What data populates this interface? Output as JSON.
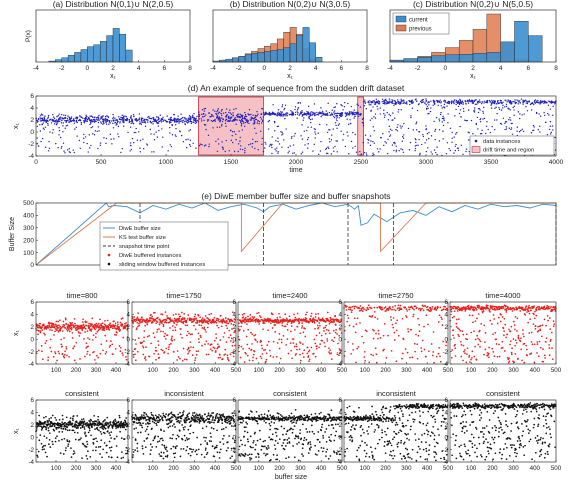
{
  "chart_data": [
    {
      "id": "hist_a",
      "type": "bar",
      "title": "(a) Distribution N(0,1)∪ N(2,0.5)",
      "xlabel": "x₁",
      "ylabel": "P(x)",
      "xlim": [
        -4,
        8
      ],
      "xticks": [
        "-4",
        "-2",
        "0",
        "2",
        "4",
        "6",
        "8"
      ],
      "bin_edges": [
        -3.0,
        -2.5,
        -2.0,
        -1.5,
        -1.0,
        -0.5,
        0.0,
        0.5,
        1.0,
        1.5,
        2.0,
        2.5,
        3.0,
        3.5
      ],
      "series": [
        {
          "name": "current",
          "color": "#3a8fd0",
          "values": [
            0.02,
            0.05,
            0.09,
            0.14,
            0.2,
            0.26,
            0.32,
            0.36,
            0.43,
            0.55,
            0.7,
            0.58,
            0.25
          ]
        }
      ]
    },
    {
      "id": "hist_b",
      "type": "bar",
      "title": "(b) Distribution N(0,2)∪ N(3,0.5)",
      "xlabel": "x₁",
      "xlim": [
        -4,
        8
      ],
      "xticks": [
        "-4",
        "-2",
        "0",
        "2",
        "4",
        "6",
        "8"
      ],
      "bin_edges": [
        -4.0,
        -3.5,
        -3.0,
        -2.5,
        -2.0,
        -1.5,
        -1.0,
        -0.5,
        0.0,
        0.5,
        1.0,
        1.5,
        2.0,
        2.5,
        3.0,
        3.5,
        4.0,
        4.5
      ],
      "series": [
        {
          "name": "current",
          "color": "#3a8fd0",
          "values": [
            0.02,
            0.04,
            0.06,
            0.09,
            0.12,
            0.15,
            0.18,
            0.2,
            0.22,
            0.24,
            0.26,
            0.3,
            0.38,
            0.55,
            0.72,
            0.4,
            0.1
          ]
        },
        {
          "name": "previous",
          "color": "#e07b4f",
          "values": [
            0.0,
            0.02,
            0.04,
            0.08,
            0.12,
            0.17,
            0.22,
            0.28,
            0.33,
            0.38,
            0.48,
            0.62,
            0.72,
            0.58,
            0.28,
            0.05,
            0.0
          ]
        }
      ]
    },
    {
      "id": "hist_c",
      "type": "bar",
      "title": "(c) Distribution N(0,2)∪ N(5,0.5)",
      "xlabel": "x₁",
      "xlim": [
        -4,
        8
      ],
      "xticks": [
        "-4",
        "-2",
        "0",
        "2",
        "4",
        "6",
        "8"
      ],
      "legend": {
        "entries": [
          "current",
          "previous"
        ],
        "position": "top-left"
      },
      "bin_edges": [
        -4.0,
        -3.0,
        -2.0,
        -1.0,
        0.0,
        1.0,
        2.0,
        3.0,
        4.0,
        5.0,
        6.0,
        7.0
      ],
      "series": [
        {
          "name": "current",
          "color": "#3a8fd0",
          "values": [
            0.04,
            0.07,
            0.1,
            0.13,
            0.15,
            0.16,
            0.18,
            0.2,
            0.42,
            0.85,
            0.55
          ]
        },
        {
          "name": "previous",
          "color": "#e07b4f",
          "values": [
            0.03,
            0.07,
            0.12,
            0.2,
            0.3,
            0.45,
            0.68,
            1.0,
            0.4,
            0.05,
            0.0
          ]
        }
      ]
    },
    {
      "id": "sequence",
      "type": "scatter",
      "title": "(d) An example of sequence from the sudden drift dataset",
      "xlabel": "time",
      "ylabel": "x₁",
      "xlim": [
        0,
        4000
      ],
      "ylim": [
        -4,
        6
      ],
      "xticks": [
        "0",
        "500",
        "1000",
        "1500",
        "2000",
        "2500",
        "3000",
        "3500",
        "4000"
      ],
      "yticks": [
        "-4",
        "-2",
        "0",
        "2",
        "4",
        "6"
      ],
      "drift_regions": [
        [
          1250,
          1750
        ],
        [
          2475,
          2520
        ]
      ],
      "legend": {
        "entries": [
          "data instances",
          "drift time and region"
        ],
        "position": "bottom-right"
      },
      "segments": [
        {
          "from": 0,
          "to": 1250,
          "band_center": 2.0,
          "band_spread": 0.5,
          "scatter_range": [
            -3.5,
            3.0
          ],
          "band_fraction": 0.72
        },
        {
          "from": 1250,
          "to": 1750,
          "band_center": 2.3,
          "band_spread": 0.7,
          "scatter_range": [
            -3.5,
            4.0
          ],
          "band_fraction": 0.62
        },
        {
          "from": 1750,
          "to": 2500,
          "band_center": 3.0,
          "band_spread": 0.25,
          "scatter_range": [
            -3.8,
            5.0
          ],
          "band_fraction": 0.55
        },
        {
          "from": 2500,
          "to": 4000,
          "band_center": 5.0,
          "band_spread": 0.3,
          "scatter_range": [
            -4.0,
            5.0
          ],
          "band_fraction": 0.5
        }
      ]
    },
    {
      "id": "buffer",
      "type": "line",
      "title": "(e) DiwE member buffer size and buffer snapshots",
      "ylabel": "Buffer Size",
      "xlim": [
        0,
        4000
      ],
      "ylim": [
        0,
        500
      ],
      "yticks": [
        "0",
        "100",
        "200",
        "300",
        "400",
        "500"
      ],
      "snapshot_times": [
        800,
        1750,
        2400,
        2750,
        4000
      ],
      "series": [
        {
          "name": "DiwE buffer size",
          "color": "#3a8fd0",
          "style": "solid",
          "x": [
            0,
            540,
            560,
            600,
            700,
            800,
            900,
            1000,
            1100,
            1200,
            1300,
            1400,
            1500,
            1600,
            1700,
            1750,
            1800,
            1900,
            2000,
            2100,
            2200,
            2300,
            2400,
            2450,
            2480,
            2500,
            2550,
            2600,
            2700,
            2800,
            2900,
            3000,
            3100,
            3200,
            3300,
            3400,
            3500,
            3600,
            3700,
            3800,
            3900,
            4000
          ],
          "y": [
            0,
            500,
            470,
            480,
            470,
            420,
            480,
            450,
            490,
            460,
            500,
            440,
            470,
            490,
            460,
            430,
            470,
            490,
            450,
            480,
            500,
            470,
            490,
            450,
            480,
            320,
            340,
            410,
            350,
            420,
            440,
            400,
            470,
            430,
            480,
            450,
            490,
            470,
            480,
            460,
            490,
            480
          ]
        },
        {
          "name": "KS test buffer size",
          "color": "#e07b4f",
          "style": "solid",
          "x": [
            0,
            620,
            650,
            1580,
            1580,
            1900,
            2650,
            2650,
            3000,
            4000
          ],
          "y": [
            0,
            500,
            500,
            500,
            110,
            500,
            500,
            110,
            500,
            500
          ]
        }
      ],
      "legend": {
        "entries": [
          "DiwE buffer size",
          "KS test buffer size",
          "snapshot time point",
          "DiwE buffered instances",
          "sliding window buffered instances"
        ],
        "position": "center"
      }
    },
    {
      "id": "snapshots",
      "type": "scatter",
      "xlabel": "buffer size",
      "ylabel": "x₁",
      "ylim": [
        -4,
        6
      ],
      "yticks": [
        "-4",
        "-2",
        "0",
        "2",
        "4",
        "6"
      ],
      "xticks_a": [
        "100",
        "200",
        "300",
        "400"
      ],
      "xticks_b": [
        "100",
        "200",
        "300",
        "400",
        "500"
      ],
      "row_diwe": [
        {
          "title": "time=800",
          "n": 420,
          "band_center": 2.0,
          "band_spread": 0.5,
          "scatter_range": [
            -3.5,
            3.5
          ],
          "band_fraction": 0.62
        },
        {
          "title": "time=1750",
          "n": 490,
          "band_center": 3.0,
          "band_spread": 0.3,
          "scatter_range": [
            -3.5,
            4.5
          ],
          "band_fraction": 0.45
        },
        {
          "title": "time=2400",
          "n": 490,
          "band_center": 3.0,
          "band_spread": 0.25,
          "scatter_range": [
            -3.8,
            4.5
          ],
          "band_fraction": 0.5
        },
        {
          "title": "time=2750",
          "n": 260,
          "band_center": 5.0,
          "band_spread": 0.3,
          "scatter_range": [
            -3.8,
            5.5
          ],
          "band_fraction": 0.42
        },
        {
          "title": "time=4000",
          "n": 480,
          "band_center": 5.0,
          "band_spread": 0.3,
          "scatter_range": [
            -3.8,
            5.5
          ],
          "band_fraction": 0.5
        }
      ],
      "row_window": [
        {
          "title": "consistent",
          "n": 500,
          "band_center": 2.0,
          "band_spread": 0.5,
          "scatter_range": [
            -3.5,
            3.5
          ],
          "band_fraction": 0.62,
          "switch_at": 1.0,
          "band_center_after": 2.0
        },
        {
          "title": "inconsistent",
          "n": 500,
          "band_center": 2.3,
          "band_spread": 0.6,
          "scatter_range": [
            -3.5,
            4.0
          ],
          "band_fraction": 0.5,
          "switch_at": 0.0,
          "band_center_after": 3.0
        },
        {
          "title": "consistent",
          "n": 500,
          "band_center": 3.0,
          "band_spread": 0.25,
          "scatter_range": [
            -3.8,
            4.5
          ],
          "band_fraction": 0.5,
          "switch_at": 1.0,
          "band_center_after": 3.0
        },
        {
          "title": "inconsistent",
          "n": 500,
          "band_center": 3.0,
          "band_spread": 0.25,
          "scatter_range": [
            -3.8,
            5.0
          ],
          "band_fraction": 0.5,
          "switch_at": 0.5,
          "band_center_after": 5.0
        },
        {
          "title": "consistent",
          "n": 500,
          "band_center": 5.0,
          "band_spread": 0.3,
          "scatter_range": [
            -3.8,
            5.5
          ],
          "band_fraction": 0.5,
          "switch_at": 1.0,
          "band_center_after": 5.0
        }
      ]
    }
  ],
  "colors": {
    "current": "#3a8fd0",
    "previous": "#e07b4f",
    "data_instances": "#1f1fbf",
    "drift_region": "#f6c1c5",
    "drift_edge": "#cc2a3b",
    "diwe_buffered": "#e8201c",
    "window_buffered": "#111111"
  }
}
